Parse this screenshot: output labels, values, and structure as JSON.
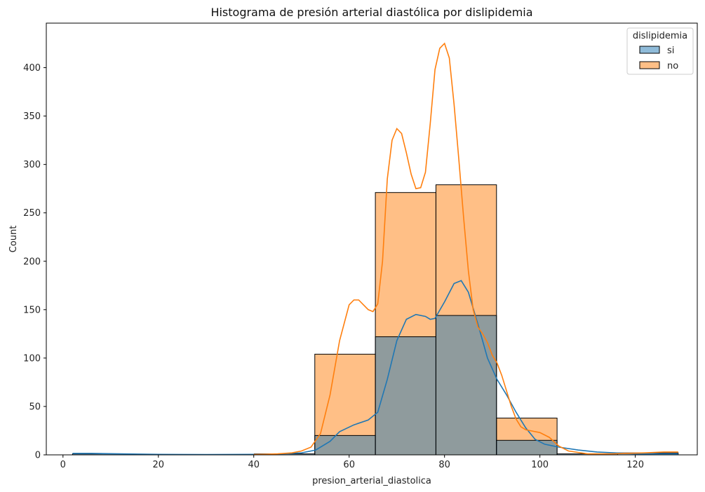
{
  "chart_data": {
    "type": "bar",
    "title": "Histograma de presión arterial diastólica por dislipidemia",
    "xlabel": "presion_arterial_diastolica",
    "ylabel": "Count",
    "xlim": [
      -3.5,
      133
    ],
    "ylim": [
      0,
      446
    ],
    "xticks": [
      0,
      20,
      40,
      60,
      80,
      100,
      120
    ],
    "yticks": [
      0,
      50,
      100,
      150,
      200,
      250,
      300,
      350,
      400
    ],
    "bin_edges": [
      2,
      14.7,
      27.4,
      40.1,
      52.8,
      65.5,
      78.2,
      90.9,
      103.6,
      116.3,
      129
    ],
    "legend": {
      "title": "dislipidemia",
      "position": "top-right"
    },
    "series": [
      {
        "name": "si",
        "color": "#1f77b4",
        "values": [
          1,
          0,
          0,
          1,
          20,
          122,
          144,
          15,
          1,
          2
        ],
        "kde": [
          [
            2,
            1.5
          ],
          [
            6,
            1.5
          ],
          [
            12,
            1
          ],
          [
            20,
            0.5
          ],
          [
            30,
            0.3
          ],
          [
            40,
            0.5
          ],
          [
            45,
            0.8
          ],
          [
            50,
            2
          ],
          [
            53,
            5
          ],
          [
            56,
            14
          ],
          [
            58,
            24
          ],
          [
            61,
            31
          ],
          [
            64,
            36
          ],
          [
            66,
            44
          ],
          [
            68,
            78
          ],
          [
            70,
            118
          ],
          [
            72,
            140
          ],
          [
            74,
            145
          ],
          [
            76,
            143
          ],
          [
            77,
            140
          ],
          [
            78,
            141
          ],
          [
            80,
            158
          ],
          [
            82,
            177
          ],
          [
            83.5,
            180
          ],
          [
            85,
            168
          ],
          [
            87,
            135
          ],
          [
            89,
            100
          ],
          [
            91,
            78
          ],
          [
            93,
            62
          ],
          [
            95,
            44
          ],
          [
            97,
            28
          ],
          [
            99,
            16
          ],
          [
            101,
            11
          ],
          [
            104,
            8
          ],
          [
            108,
            5
          ],
          [
            112,
            3
          ],
          [
            120,
            1
          ],
          [
            129,
            1
          ]
        ]
      },
      {
        "name": "no",
        "color": "#ff7f0e",
        "values": [
          0,
          0,
          0,
          0,
          104,
          271,
          279,
          38,
          0,
          0
        ],
        "kde": [
          [
            40,
            0.3
          ],
          [
            45,
            1
          ],
          [
            48,
            2
          ],
          [
            50,
            4
          ],
          [
            52,
            8
          ],
          [
            54,
            22
          ],
          [
            56,
            62
          ],
          [
            58,
            118
          ],
          [
            60,
            155
          ],
          [
            61,
            160
          ],
          [
            62,
            160
          ],
          [
            63,
            155
          ],
          [
            64,
            150
          ],
          [
            65,
            148
          ],
          [
            66,
            156
          ],
          [
            67,
            200
          ],
          [
            68,
            285
          ],
          [
            69,
            325
          ],
          [
            70,
            337
          ],
          [
            71,
            332
          ],
          [
            72,
            312
          ],
          [
            73,
            290
          ],
          [
            74,
            275
          ],
          [
            75,
            276
          ],
          [
            76,
            292
          ],
          [
            77,
            342
          ],
          [
            78,
            398
          ],
          [
            79,
            420
          ],
          [
            80,
            425
          ],
          [
            81,
            410
          ],
          [
            82,
            362
          ],
          [
            83,
            305
          ],
          [
            84,
            245
          ],
          [
            85,
            190
          ],
          [
            86,
            150
          ],
          [
            87,
            132
          ],
          [
            88,
            125
          ],
          [
            89,
            116
          ],
          [
            90,
            103
          ],
          [
            91,
            95
          ],
          [
            92,
            82
          ],
          [
            93,
            66
          ],
          [
            94,
            50
          ],
          [
            95,
            37
          ],
          [
            96,
            29
          ],
          [
            97,
            26
          ],
          [
            98,
            25
          ],
          [
            100,
            23
          ],
          [
            102,
            18
          ],
          [
            104,
            9
          ],
          [
            106,
            4
          ],
          [
            110,
            1
          ],
          [
            115,
            1
          ],
          [
            122,
            2
          ],
          [
            126,
            3
          ],
          [
            129,
            3
          ]
        ]
      }
    ]
  }
}
